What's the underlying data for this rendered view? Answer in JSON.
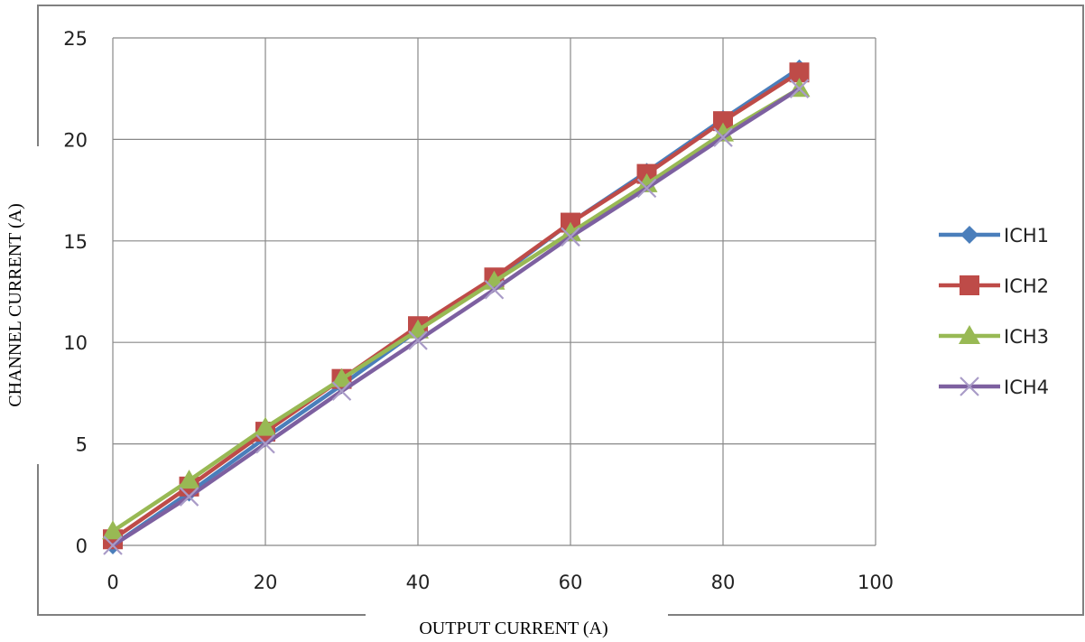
{
  "chart_data": {
    "type": "line",
    "xlabel": "OUTPUT CURRENT (A)",
    "ylabel": "CHANNEL CURRENT (A)",
    "xlim": [
      0,
      100
    ],
    "ylim": [
      0,
      25
    ],
    "x_ticks": [
      "0",
      "20",
      "40",
      "60",
      "80",
      "100"
    ],
    "y_ticks": [
      "0",
      "5",
      "10",
      "15",
      "20",
      "25"
    ],
    "grid": true,
    "legend_position": "right",
    "x": [
      0,
      10,
      20,
      30,
      40,
      50,
      60,
      70,
      80,
      90
    ],
    "series": [
      {
        "name": "ICH1",
        "color": "#4a7ebb",
        "marker": "diamond",
        "values": [
          0.0,
          2.6,
          5.3,
          7.9,
          10.6,
          13.1,
          15.9,
          18.4,
          21.0,
          23.5
        ]
      },
      {
        "name": "ICH2",
        "color": "#be4b48",
        "marker": "square",
        "values": [
          0.3,
          2.9,
          5.6,
          8.2,
          10.8,
          13.2,
          15.9,
          18.3,
          20.9,
          23.3
        ]
      },
      {
        "name": "ICH3",
        "color": "#98b954",
        "marker": "triangle",
        "values": [
          0.7,
          3.2,
          5.8,
          8.2,
          10.6,
          13.0,
          15.4,
          17.8,
          20.3,
          22.5
        ]
      },
      {
        "name": "ICH4",
        "color": "#7d60a0",
        "marker": "x",
        "values": [
          0.0,
          2.4,
          5.0,
          7.6,
          10.1,
          12.6,
          15.2,
          17.6,
          20.1,
          22.5
        ]
      }
    ]
  }
}
